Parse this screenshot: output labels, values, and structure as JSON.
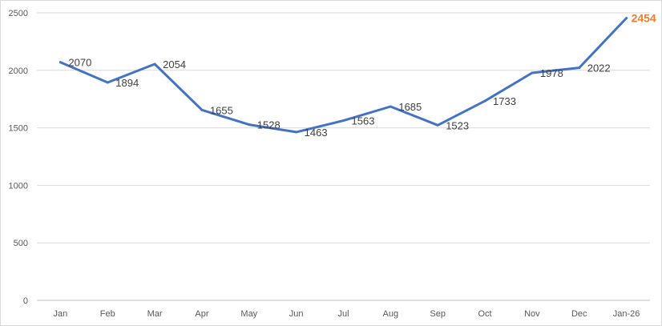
{
  "chart_data": {
    "type": "line",
    "categories": [
      "Jan",
      "Feb",
      "Mar",
      "Apr",
      "May",
      "Jun",
      "Jul",
      "Aug",
      "Sep",
      "Oct",
      "Nov",
      "Dec",
      "Jan-26"
    ],
    "series": [
      {
        "values": [
          2070,
          1894,
          2054,
          1655,
          1528,
          1463,
          1563,
          1685,
          1523,
          1733,
          1978,
          2022,
          2454
        ]
      }
    ],
    "ylim": [
      0,
      2500
    ],
    "yticks": [
      0,
      500,
      1000,
      1500,
      2000,
      2500
    ],
    "grid": true,
    "title": "",
    "xlabel": "",
    "ylabel": "",
    "colors": {
      "line": "#4472C4",
      "highlight_label": "#ED7D31",
      "gridline": "#d9d9d9",
      "axis": "#bfbfbf"
    },
    "highlight_index": 12
  }
}
